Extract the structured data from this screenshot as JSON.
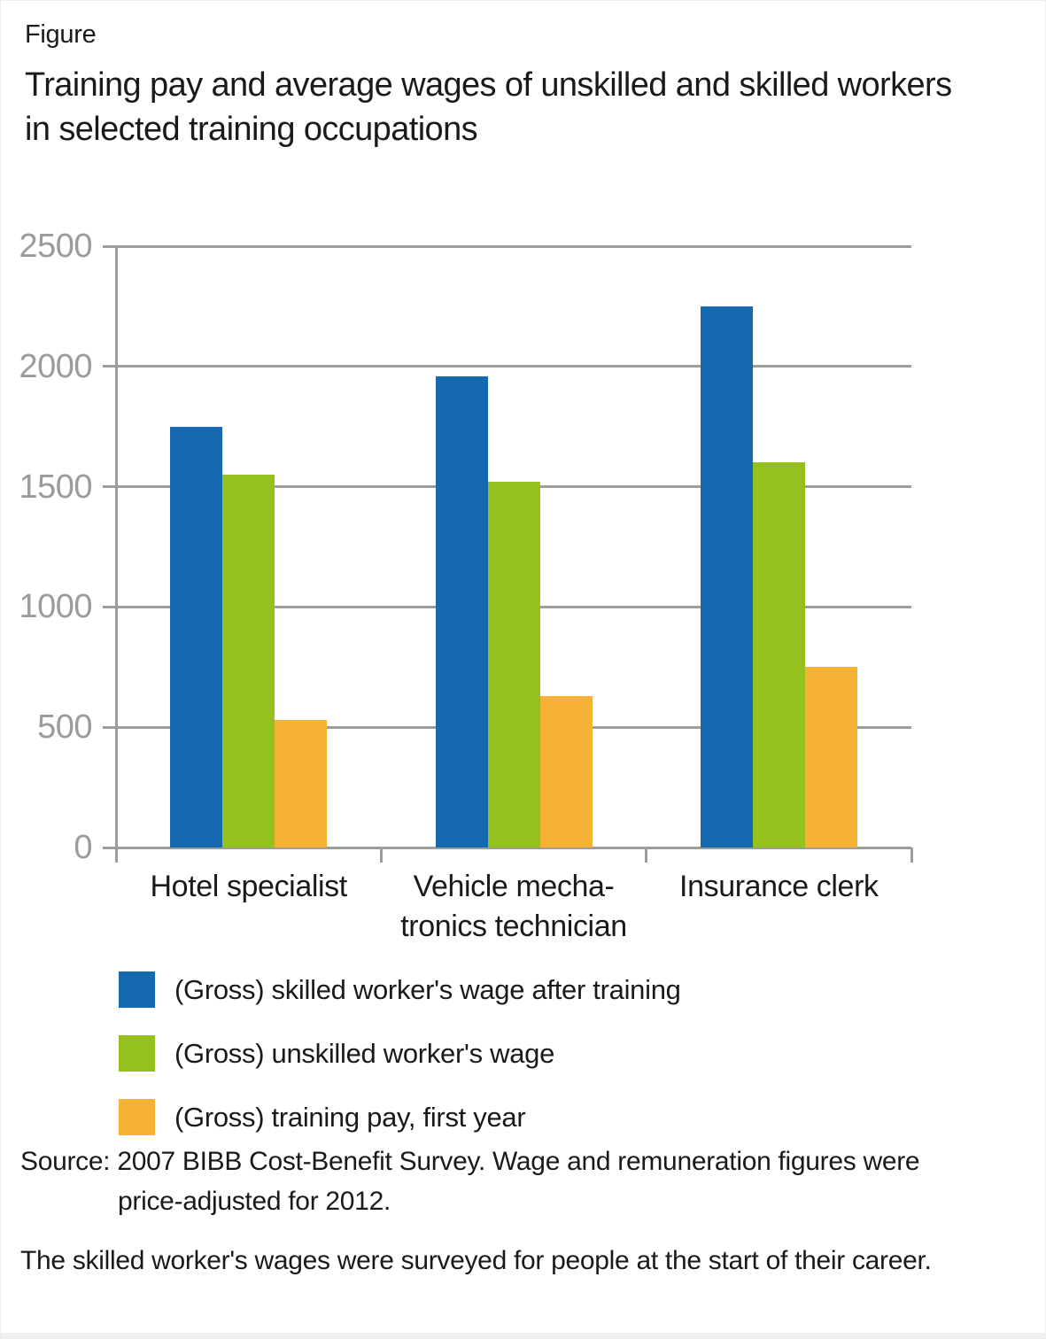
{
  "figure_label": "Figure",
  "title": "Training pay and average wages of unskilled and skilled workers\nin selected training occupations",
  "chart_data": {
    "type": "bar",
    "categories": [
      "Hotel specialist",
      "Vehicle mecha-\ntronics technician",
      "Insurance clerk"
    ],
    "series": [
      {
        "name": "(Gross) skilled worker's wage after training",
        "color": "#1569b0",
        "values": [
          1750,
          1960,
          2250
        ]
      },
      {
        "name": "(Gross) unskilled worker's wage",
        "color": "#95c11f",
        "values": [
          1550,
          1520,
          1600
        ]
      },
      {
        "name": "(Gross) training pay, first year",
        "color": "#f6b234",
        "values": [
          530,
          630,
          750
        ]
      }
    ],
    "ylabel": "",
    "xlabel": "",
    "ylim": [
      0,
      2500
    ],
    "yticks": [
      0,
      500,
      1000,
      1500,
      2000,
      2500
    ],
    "grid": "horizontal",
    "gridline_color": "#9d9d9c",
    "tick_label_color": "#9b9b9b",
    "legend_position": "bottom"
  },
  "source": {
    "line1": "Source: 2007 BIBB Cost-Benefit Survey. Wage and remuneration figures were",
    "line2": "price-adjusted for 2012.",
    "note": "The skilled worker's wages were surveyed for people at the start of their career."
  }
}
